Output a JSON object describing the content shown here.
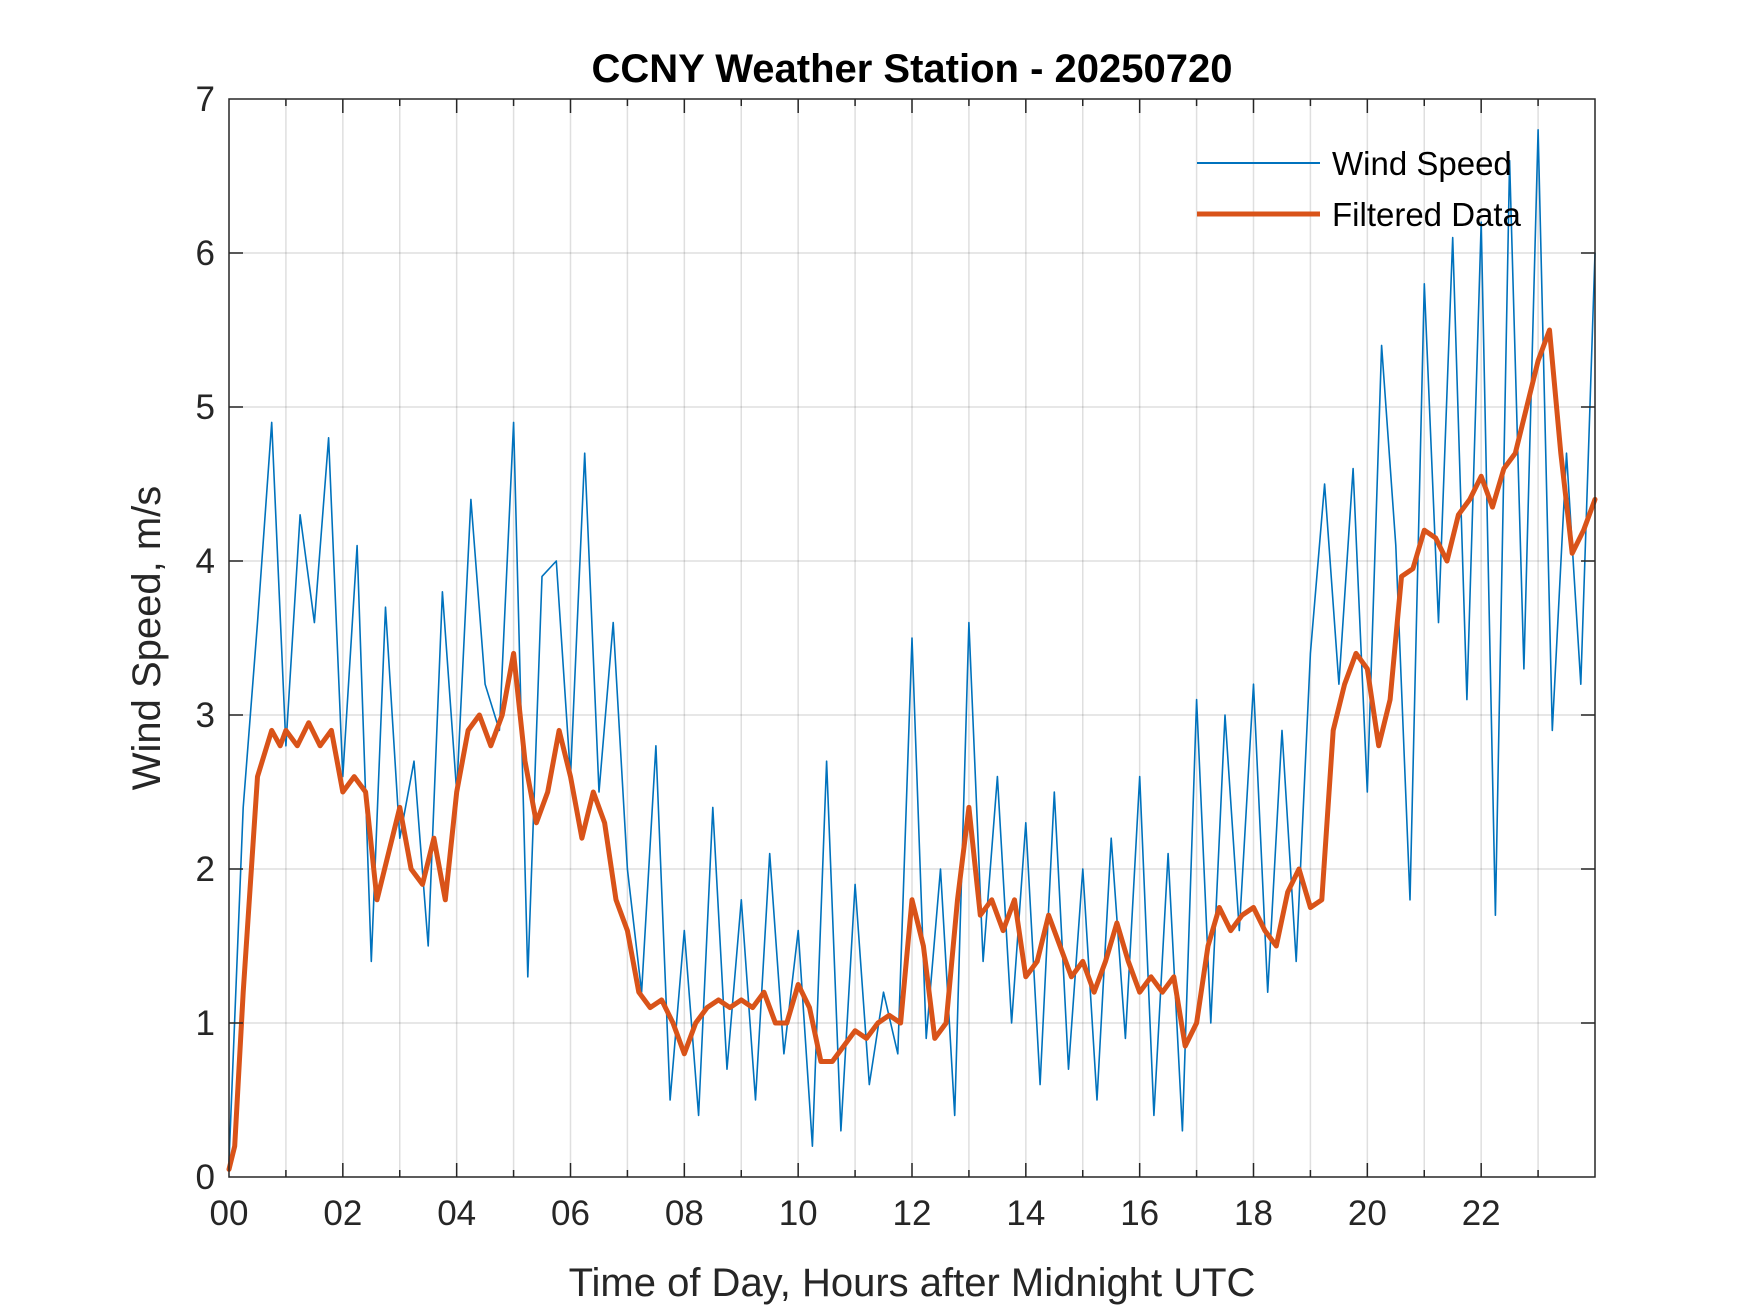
{
  "chart_data": {
    "type": "line",
    "title": "CCNY Weather Station - 20250720",
    "xlabel": "Time of Day, Hours after Midnight UTC",
    "ylabel": "Wind Speed, m/s",
    "xlim": [
      0,
      24
    ],
    "ylim": [
      0,
      7
    ],
    "grid": true,
    "legend_position": "top-right",
    "x_ticks": [
      {
        "value": 0,
        "label": "00"
      },
      {
        "value": 2,
        "label": "02"
      },
      {
        "value": 4,
        "label": "04"
      },
      {
        "value": 6,
        "label": "06"
      },
      {
        "value": 8,
        "label": "08"
      },
      {
        "value": 10,
        "label": "10"
      },
      {
        "value": 12,
        "label": "12"
      },
      {
        "value": 14,
        "label": "14"
      },
      {
        "value": 16,
        "label": "16"
      },
      {
        "value": 18,
        "label": "18"
      },
      {
        "value": 20,
        "label": "20"
      },
      {
        "value": 22,
        "label": "22"
      }
    ],
    "y_ticks": [
      {
        "value": 0,
        "label": "0"
      },
      {
        "value": 1,
        "label": "1"
      },
      {
        "value": 2,
        "label": "2"
      },
      {
        "value": 3,
        "label": "3"
      },
      {
        "value": 4,
        "label": "4"
      },
      {
        "value": 5,
        "label": "5"
      },
      {
        "value": 6,
        "label": "6"
      },
      {
        "value": 7,
        "label": "7"
      }
    ],
    "series": [
      {
        "name": "Wind Speed",
        "color": "#0072BD",
        "x": [
          0.0,
          0.25,
          0.5,
          0.75,
          1.0,
          1.25,
          1.5,
          1.75,
          2.0,
          2.25,
          2.5,
          2.75,
          3.0,
          3.25,
          3.5,
          3.75,
          4.0,
          4.25,
          4.5,
          4.75,
          5.0,
          5.25,
          5.5,
          5.75,
          6.0,
          6.25,
          6.5,
          6.75,
          7.0,
          7.25,
          7.5,
          7.75,
          8.0,
          8.25,
          8.5,
          8.75,
          9.0,
          9.25,
          9.5,
          9.75,
          10.0,
          10.25,
          10.5,
          10.75,
          11.0,
          11.25,
          11.5,
          11.75,
          12.0,
          12.25,
          12.5,
          12.75,
          13.0,
          13.25,
          13.5,
          13.75,
          14.0,
          14.25,
          14.5,
          14.75,
          15.0,
          15.25,
          15.5,
          15.75,
          16.0,
          16.25,
          16.5,
          16.75,
          17.0,
          17.25,
          17.5,
          17.75,
          18.0,
          18.25,
          18.5,
          18.75,
          19.0,
          19.25,
          19.5,
          19.75,
          20.0,
          20.25,
          20.5,
          20.75,
          21.0,
          21.25,
          21.5,
          21.75,
          22.0,
          22.25,
          22.5,
          22.75,
          23.0,
          23.25,
          23.5,
          23.75,
          24.0
        ],
        "values": [
          0.1,
          2.4,
          3.6,
          4.9,
          2.8,
          4.3,
          3.6,
          4.8,
          2.6,
          4.1,
          1.4,
          3.7,
          2.2,
          2.7,
          1.5,
          3.8,
          2.5,
          4.4,
          3.2,
          2.9,
          4.9,
          1.3,
          3.9,
          4.0,
          2.6,
          4.7,
          2.5,
          3.6,
          2.0,
          1.2,
          2.8,
          0.5,
          1.6,
          0.4,
          2.4,
          0.7,
          1.8,
          0.5,
          2.1,
          0.8,
          1.6,
          0.2,
          2.7,
          0.3,
          1.9,
          0.6,
          1.2,
          0.8,
          3.5,
          0.9,
          2.0,
          0.4,
          3.6,
          1.4,
          2.6,
          1.0,
          2.3,
          0.6,
          2.5,
          0.7,
          2.0,
          0.5,
          2.2,
          0.9,
          2.6,
          0.4,
          2.1,
          0.3,
          3.1,
          1.0,
          3.0,
          1.6,
          3.2,
          1.2,
          2.9,
          1.4,
          3.4,
          4.5,
          3.2,
          4.6,
          2.5,
          5.4,
          4.1,
          1.8,
          5.8,
          3.6,
          6.1,
          3.1,
          6.2,
          1.7,
          6.6,
          3.3,
          6.8,
          2.9,
          4.7,
          3.2,
          6.0
        ]
      },
      {
        "name": "Filtered Data",
        "color": "#D95319",
        "x": [
          0.0,
          0.1,
          0.25,
          0.5,
          0.75,
          0.9,
          1.0,
          1.2,
          1.4,
          1.6,
          1.8,
          2.0,
          2.2,
          2.4,
          2.6,
          2.8,
          3.0,
          3.2,
          3.4,
          3.6,
          3.8,
          4.0,
          4.2,
          4.4,
          4.6,
          4.8,
          5.0,
          5.2,
          5.4,
          5.6,
          5.8,
          6.0,
          6.2,
          6.4,
          6.6,
          6.8,
          7.0,
          7.2,
          7.4,
          7.6,
          7.8,
          8.0,
          8.2,
          8.4,
          8.6,
          8.8,
          9.0,
          9.2,
          9.4,
          9.6,
          9.8,
          10.0,
          10.2,
          10.4,
          10.6,
          10.8,
          11.0,
          11.2,
          11.4,
          11.6,
          11.8,
          12.0,
          12.2,
          12.4,
          12.6,
          12.8,
          13.0,
          13.2,
          13.4,
          13.6,
          13.8,
          14.0,
          14.2,
          14.4,
          14.6,
          14.8,
          15.0,
          15.2,
          15.4,
          15.6,
          15.8,
          16.0,
          16.2,
          16.4,
          16.6,
          16.8,
          17.0,
          17.2,
          17.4,
          17.6,
          17.8,
          18.0,
          18.2,
          18.4,
          18.6,
          18.8,
          19.0,
          19.2,
          19.4,
          19.6,
          19.8,
          20.0,
          20.2,
          20.4,
          20.6,
          20.8,
          21.0,
          21.2,
          21.4,
          21.6,
          21.8,
          22.0,
          22.2,
          22.4,
          22.6,
          22.8,
          23.0,
          23.2,
          23.4,
          23.6,
          23.8,
          24.0
        ],
        "values": [
          0.05,
          0.2,
          1.2,
          2.6,
          2.9,
          2.8,
          2.9,
          2.8,
          2.95,
          2.8,
          2.9,
          2.5,
          2.6,
          2.5,
          1.8,
          2.1,
          2.4,
          2.0,
          1.9,
          2.2,
          1.8,
          2.5,
          2.9,
          3.0,
          2.8,
          3.0,
          3.4,
          2.7,
          2.3,
          2.5,
          2.9,
          2.6,
          2.2,
          2.5,
          2.3,
          1.8,
          1.6,
          1.2,
          1.1,
          1.15,
          1.0,
          0.8,
          1.0,
          1.1,
          1.15,
          1.1,
          1.15,
          1.1,
          1.2,
          1.0,
          1.0,
          1.25,
          1.1,
          0.75,
          0.75,
          0.85,
          0.95,
          0.9,
          1.0,
          1.05,
          1.0,
          1.8,
          1.5,
          0.9,
          1.0,
          1.8,
          2.4,
          1.7,
          1.8,
          1.6,
          1.8,
          1.3,
          1.4,
          1.7,
          1.5,
          1.3,
          1.4,
          1.2,
          1.4,
          1.65,
          1.4,
          1.2,
          1.3,
          1.2,
          1.3,
          0.85,
          1.0,
          1.5,
          1.75,
          1.6,
          1.7,
          1.75,
          1.6,
          1.5,
          1.85,
          2.0,
          1.75,
          1.8,
          2.9,
          3.2,
          3.4,
          3.3,
          2.8,
          3.1,
          3.9,
          3.95,
          4.2,
          4.15,
          4.0,
          4.3,
          4.4,
          4.55,
          4.35,
          4.6,
          4.7,
          5.0,
          5.3,
          5.5,
          4.7,
          4.05,
          4.2,
          4.4
        ]
      }
    ]
  }
}
